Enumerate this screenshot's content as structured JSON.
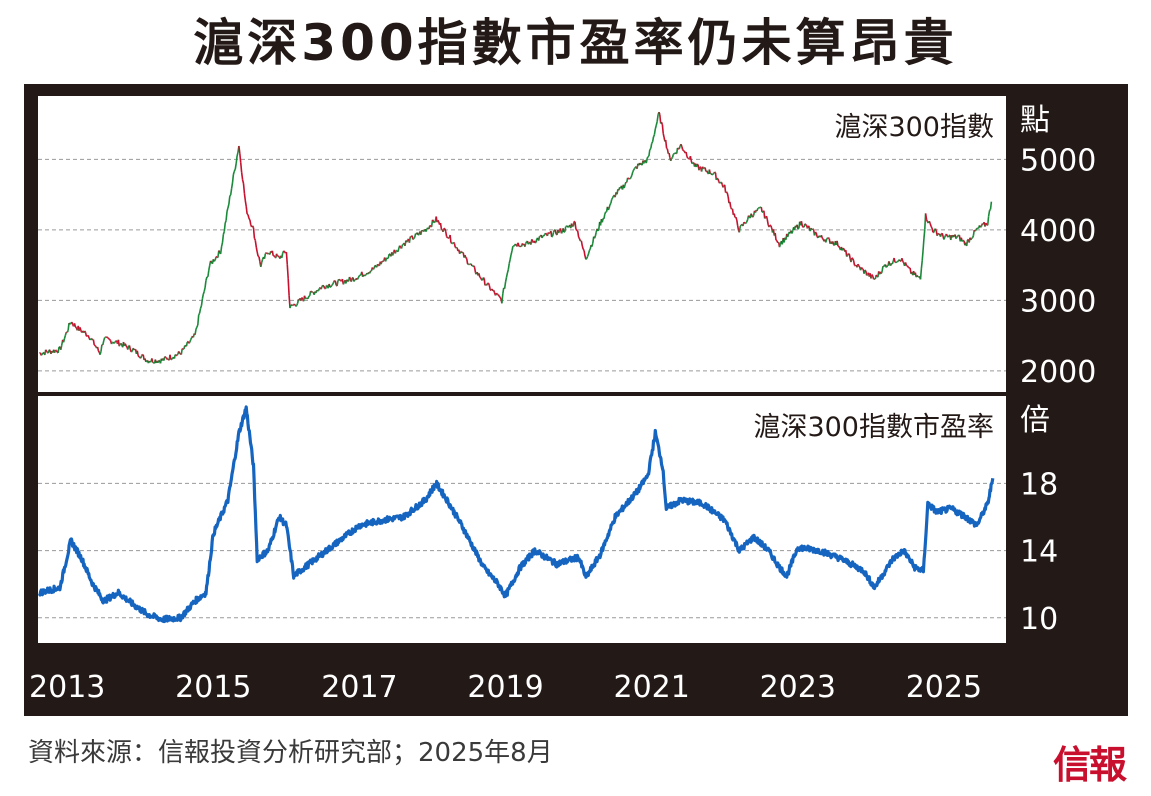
{
  "title": "滬深300指數市盈率仍未算昂貴",
  "source": "資料來源：信報投資分析研究部；2025年8月",
  "logo": "信報",
  "colors": {
    "background": "#231916",
    "panel": "#ffffff",
    "up": "#1a8a3a",
    "down": "#c8102e",
    "pe_line": "#1565c0",
    "grid": "#9a9a9a"
  },
  "chart_data": [
    {
      "type": "line",
      "title": "滬深300指數",
      "ylabel": "點",
      "ylim": [
        1700,
        5900
      ],
      "yticks": [
        2000,
        3000,
        4000,
        5000
      ],
      "xlim": [
        2012.6,
        2025.85
      ],
      "xticks": [
        "2013",
        "2015",
        "2017",
        "2019",
        "2021",
        "2023",
        "2025"
      ],
      "grid": true,
      "series": [
        {
          "x": [
            2012.62,
            2012.9,
            2013.05,
            2013.15,
            2013.3,
            2013.45,
            2013.5,
            2013.7,
            2013.9,
            2014.1,
            2014.3,
            2014.55,
            2014.75,
            2014.85,
            2014.95,
            2015.1,
            2015.2,
            2015.35,
            2015.45,
            2015.55,
            2015.6,
            2015.65,
            2015.75,
            2015.9,
            2016.0,
            2016.05,
            2016.2,
            2016.5,
            2016.9,
            2017.2,
            2017.6,
            2017.9,
            2018.05,
            2018.3,
            2018.6,
            2018.85,
            2018.95,
            2019.1,
            2019.3,
            2019.5,
            2019.8,
            2019.95,
            2020.1,
            2020.3,
            2020.5,
            2020.6,
            2020.8,
            2020.95,
            2021.1,
            2021.25,
            2021.4,
            2021.6,
            2021.85,
            2022.0,
            2022.2,
            2022.35,
            2022.5,
            2022.75,
            2022.85,
            2023.05,
            2023.3,
            2023.55,
            2023.8,
            2024.05,
            2024.2,
            2024.4,
            2024.55,
            2024.68,
            2024.75,
            2024.85,
            2025.0,
            2025.2,
            2025.3,
            2025.45,
            2025.6,
            2025.65
          ],
          "y": [
            2250,
            2300,
            2700,
            2600,
            2500,
            2250,
            2450,
            2400,
            2300,
            2150,
            2150,
            2250,
            2500,
            3000,
            3500,
            3700,
            4300,
            5200,
            4300,
            4000,
            3700,
            3500,
            3700,
            3600,
            3700,
            2900,
            3000,
            3200,
            3300,
            3450,
            3800,
            4000,
            4150,
            3800,
            3400,
            3100,
            3000,
            3800,
            3800,
            3900,
            4000,
            4100,
            3600,
            4100,
            4500,
            4600,
            4900,
            5000,
            5650,
            5000,
            5200,
            4900,
            4800,
            4600,
            4000,
            4200,
            4300,
            3800,
            3900,
            4100,
            3900,
            3800,
            3500,
            3300,
            3500,
            3600,
            3400,
            3300,
            4200,
            4000,
            3900,
            3900,
            3800,
            4000,
            4100,
            4400
          ]
        }
      ]
    },
    {
      "type": "line",
      "title": "滬深300指數市盈率",
      "ylabel": "倍",
      "ylim": [
        8.5,
        23.2
      ],
      "yticks": [
        10,
        14,
        18
      ],
      "xlim": [
        2012.6,
        2025.85
      ],
      "xticks": [
        "2013",
        "2015",
        "2017",
        "2019",
        "2021",
        "2023",
        "2025"
      ],
      "grid": true,
      "series": [
        {
          "x": [
            2012.62,
            2012.9,
            2013.05,
            2013.2,
            2013.35,
            2013.5,
            2013.7,
            2013.9,
            2014.1,
            2014.3,
            2014.55,
            2014.75,
            2014.9,
            2015.0,
            2015.2,
            2015.35,
            2015.45,
            2015.55,
            2015.6,
            2015.75,
            2015.9,
            2016.0,
            2016.1,
            2016.4,
            2016.7,
            2017.0,
            2017.3,
            2017.6,
            2017.9,
            2018.05,
            2018.2,
            2018.4,
            2018.7,
            2018.9,
            2019.0,
            2019.2,
            2019.4,
            2019.7,
            2020.0,
            2020.1,
            2020.3,
            2020.5,
            2020.8,
            2020.95,
            2021.05,
            2021.15,
            2021.2,
            2021.4,
            2021.7,
            2022.0,
            2022.2,
            2022.4,
            2022.6,
            2022.75,
            2022.85,
            2023.0,
            2023.3,
            2023.6,
            2023.9,
            2024.05,
            2024.3,
            2024.45,
            2024.6,
            2024.72,
            2024.78,
            2024.9,
            2025.1,
            2025.3,
            2025.45,
            2025.6,
            2025.67
          ],
          "y": [
            11.5,
            11.8,
            14.6,
            13.5,
            12.0,
            11.0,
            11.5,
            10.8,
            10.2,
            9.9,
            10.0,
            11.0,
            11.5,
            15.0,
            17.0,
            21.0,
            22.5,
            19.0,
            13.5,
            14.0,
            16.0,
            15.5,
            12.5,
            13.5,
            14.5,
            15.5,
            15.8,
            16.0,
            17.0,
            18.0,
            17.0,
            15.5,
            13.0,
            12.0,
            11.3,
            13.0,
            14.0,
            13.2,
            13.6,
            12.4,
            13.8,
            16.0,
            17.5,
            18.5,
            21.0,
            19.0,
            16.5,
            17.0,
            16.8,
            15.8,
            14.0,
            14.8,
            14.0,
            13.0,
            12.5,
            14.2,
            14.0,
            13.5,
            12.8,
            11.8,
            13.5,
            14.0,
            13.0,
            12.8,
            16.8,
            16.3,
            16.5,
            16.0,
            15.5,
            16.8,
            18.3
          ]
        }
      ]
    }
  ]
}
